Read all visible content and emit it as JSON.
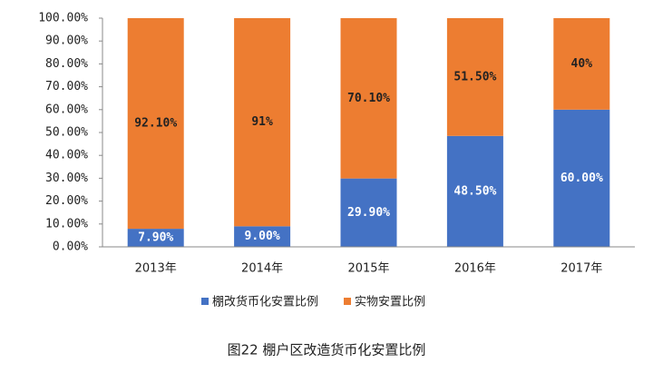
{
  "chart_data": {
    "type": "stacked_bar",
    "caption": "图22  棚户区改造货币化安置比例",
    "categories": [
      "2013年",
      "2014年",
      "2015年",
      "2016年",
      "2017年"
    ],
    "series": [
      {
        "name": "棚改货币化安置比例",
        "color": "#4472c4",
        "values": [
          7.9,
          9,
          29.9,
          48.5,
          60
        ],
        "value_labels": [
          "7.90%",
          "9.00%",
          "29.90%",
          "48.50%",
          "60.00%"
        ]
      },
      {
        "name": "实物安置比例",
        "color": "#ed7d31",
        "values": [
          92.1,
          91,
          70.1,
          51.5,
          40
        ],
        "value_labels": [
          "92.10%",
          "91%",
          "70.10%",
          "51.50%",
          "40%"
        ]
      }
    ],
    "ylim": [
      0,
      100
    ],
    "yticks": [
      {
        "value": 0,
        "label": "0.00%"
      },
      {
        "value": 10,
        "label": "10.00%"
      },
      {
        "value": 20,
        "label": "20.00%"
      },
      {
        "value": 30,
        "label": "30.00%"
      },
      {
        "value": 40,
        "label": "40.00%"
      },
      {
        "value": 50,
        "label": "50.00%"
      },
      {
        "value": 60,
        "label": "60.00%"
      },
      {
        "value": 70,
        "label": "70.00%"
      },
      {
        "value": 80,
        "label": "80.00%"
      },
      {
        "value": 90,
        "label": "90.00%"
      },
      {
        "value": 100,
        "label": "100.00%"
      }
    ],
    "legend": "bottom"
  }
}
